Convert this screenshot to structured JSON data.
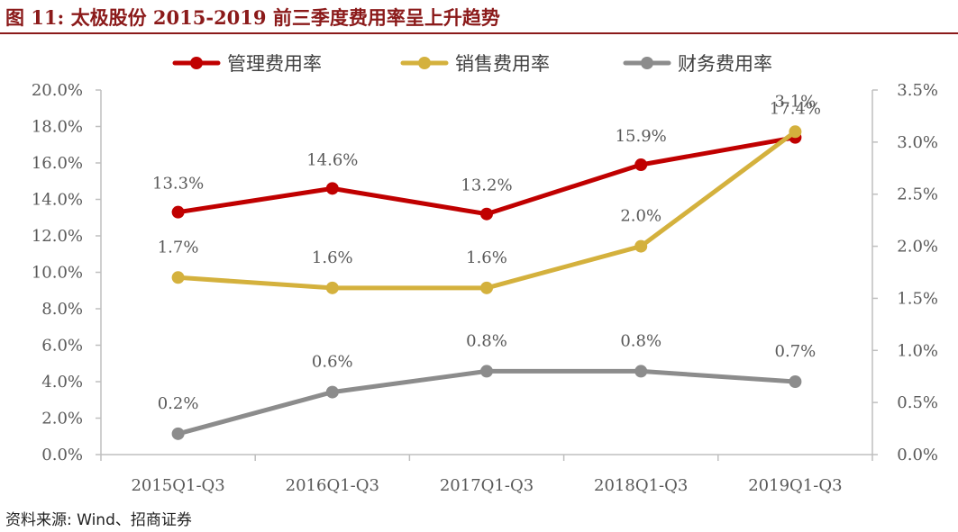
{
  "header": {
    "title": "图 11: 太极股份 2015-2019 前三季度费用率呈上升趋势"
  },
  "footer": {
    "source": "资料来源: Wind、招商证券"
  },
  "colors": {
    "title": "#8b1a1a",
    "axis": "#bfbfbf",
    "text": "#595959"
  },
  "chart_data": {
    "type": "line",
    "categories": [
      "2015Q1-Q3",
      "2016Q1-Q3",
      "2017Q1-Q3",
      "2018Q1-Q3",
      "2019Q1-Q3"
    ],
    "y_left": {
      "min": 0,
      "max": 20,
      "step": 2,
      "ticks": [
        "0.0%",
        "2.0%",
        "4.0%",
        "6.0%",
        "8.0%",
        "10.0%",
        "12.0%",
        "14.0%",
        "16.0%",
        "18.0%",
        "20.0%"
      ]
    },
    "y_right": {
      "min": 0,
      "max": 3.5,
      "step": 0.5,
      "ticks": [
        "0.0%",
        "0.5%",
        "1.0%",
        "1.5%",
        "2.0%",
        "2.5%",
        "3.0%",
        "3.5%"
      ]
    },
    "legend_position": "top",
    "grid": false,
    "series": [
      {
        "name": "管理费用率",
        "axis": "left",
        "color": "#c00000",
        "values": [
          13.3,
          14.6,
          13.2,
          15.9,
          17.4
        ],
        "labels": [
          "13.3%",
          "14.6%",
          "13.2%",
          "15.9%",
          "17.4%"
        ]
      },
      {
        "name": "销售费用率",
        "axis": "right",
        "color": "#d4b13d",
        "values": [
          1.7,
          1.6,
          1.6,
          2.0,
          3.1
        ],
        "labels": [
          "1.7%",
          "1.6%",
          "1.6%",
          "2.0%",
          "3.1%"
        ]
      },
      {
        "name": "财务费用率",
        "axis": "right",
        "color": "#8c8c8c",
        "values": [
          0.2,
          0.6,
          0.8,
          0.8,
          0.7
        ],
        "labels": [
          "0.2%",
          "0.6%",
          "0.8%",
          "0.8%",
          "0.7%"
        ]
      }
    ]
  }
}
